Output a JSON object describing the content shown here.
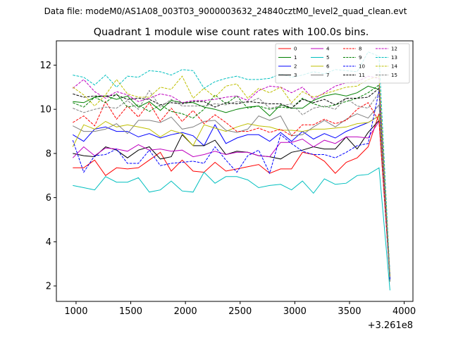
{
  "chart_data": {
    "type": "line",
    "suptitle": "Data file: modeM0/AS1A08_003T03_9000003632_24840cztM0_level2_quad_clean.evt",
    "title": "Quadrant 1 module wise count rates with 100.0s bins.",
    "xlabel": "",
    "ylabel": "",
    "x_offset_label": "+3.261e8",
    "xlim": [
      820,
      4080
    ],
    "ylim": [
      1.3,
      13.1
    ],
    "xticks": [
      1000,
      1500,
      2000,
      2500,
      3000,
      3500,
      4000
    ],
    "yticks": [
      2,
      4,
      6,
      8,
      10,
      12
    ],
    "grid": false,
    "legend": "top-right",
    "x": [
      970,
      1070,
      1170,
      1270,
      1370,
      1470,
      1570,
      1670,
      1770,
      1870,
      1970,
      2070,
      2170,
      2270,
      2370,
      2470,
      2570,
      2670,
      2770,
      2870,
      2970,
      3070,
      3170,
      3270,
      3370,
      3470,
      3570,
      3670,
      3770,
      3870
    ],
    "series": [
      {
        "name": "0",
        "color": "#ff0000",
        "dash": "solid",
        "values": [
          7.35,
          7.35,
          7.7,
          7.0,
          7.35,
          7.3,
          7.35,
          7.7,
          8.05,
          7.2,
          7.7,
          7.2,
          7.15,
          7.6,
          7.2,
          7.3,
          7.4,
          7.5,
          7.1,
          7.3,
          7.3,
          8.05,
          7.95,
          7.65,
          7.1,
          7.6,
          7.8,
          8.3,
          9.8,
          2.4
        ]
      },
      {
        "name": "1",
        "color": "#008000",
        "dash": "solid",
        "values": [
          10.35,
          10.3,
          10.55,
          10.6,
          10.45,
          10.6,
          10.1,
          10.35,
          9.95,
          10.4,
          10.3,
          10.3,
          10.1,
          10.0,
          9.85,
          10.0,
          10.1,
          10.15,
          9.7,
          10.2,
          10.05,
          10.05,
          10.4,
          10.6,
          10.7,
          10.6,
          10.75,
          11.05,
          10.9,
          2.2
        ]
      },
      {
        "name": "2",
        "color": "#0000ff",
        "dash": "solid",
        "values": [
          8.85,
          8.55,
          9.1,
          9.2,
          9.0,
          9.0,
          8.75,
          8.9,
          8.7,
          8.85,
          8.95,
          8.8,
          8.35,
          9.3,
          8.45,
          8.7,
          8.85,
          8.85,
          8.55,
          8.95,
          8.55,
          9.0,
          8.65,
          8.9,
          8.7,
          9.0,
          9.2,
          9.4,
          9.7,
          2.3
        ]
      },
      {
        "name": "3",
        "color": "#000000",
        "dash": "solid",
        "values": [
          8.0,
          7.9,
          7.85,
          8.3,
          8.15,
          7.8,
          8.15,
          8.3,
          7.75,
          7.85,
          8.85,
          8.35,
          8.35,
          8.6,
          7.95,
          8.1,
          8.05,
          7.9,
          7.85,
          7.75,
          8.05,
          8.15,
          8.3,
          8.2,
          8.2,
          8.75,
          8.2,
          8.95,
          9.5,
          2.35
        ]
      },
      {
        "name": "4",
        "color": "#bf00bf",
        "dash": "solid",
        "values": [
          7.8,
          8.3,
          7.9,
          8.25,
          8.2,
          8.1,
          8.4,
          8.15,
          8.2,
          8.1,
          8.15,
          7.85,
          7.95,
          8.1,
          7.95,
          8.05,
          8.05,
          7.9,
          7.85,
          8.5,
          8.5,
          8.65,
          8.3,
          8.6,
          8.45,
          8.75,
          8.75,
          8.7,
          9.45,
          2.3
        ]
      },
      {
        "name": "5",
        "color": "#00bfbf",
        "dash": "solid",
        "values": [
          6.55,
          6.45,
          6.35,
          6.95,
          6.7,
          6.7,
          6.9,
          6.25,
          6.35,
          6.75,
          6.3,
          6.25,
          7.15,
          6.65,
          6.95,
          6.95,
          6.8,
          6.45,
          6.55,
          6.6,
          6.35,
          6.75,
          6.2,
          6.85,
          6.6,
          6.65,
          7.0,
          7.05,
          7.35,
          1.8
        ]
      },
      {
        "name": "6",
        "color": "#bfbf00",
        "dash": "solid",
        "values": [
          8.3,
          9.3,
          9.1,
          9.45,
          9.2,
          9.3,
          9.2,
          9.1,
          8.75,
          9.05,
          8.9,
          8.35,
          9.3,
          9.15,
          9.0,
          9.2,
          9.35,
          9.25,
          9.2,
          9.05,
          9.05,
          9.0,
          9.1,
          9.1,
          9.15,
          9.2,
          9.35,
          9.4,
          9.7,
          2.3
        ]
      },
      {
        "name": "7",
        "color": "#808080",
        "dash": "solid",
        "values": [
          9.25,
          9.0,
          9.0,
          9.1,
          9.35,
          8.9,
          9.5,
          9.5,
          9.4,
          9.65,
          9.1,
          9.2,
          9.45,
          9.5,
          9.05,
          8.95,
          9.1,
          9.7,
          9.5,
          9.7,
          8.8,
          8.85,
          9.2,
          9.5,
          9.2,
          9.55,
          9.8,
          9.6,
          10.2,
          2.2
        ]
      },
      {
        "name": "8",
        "color": "#ff0000",
        "dash": "dashed",
        "values": [
          9.4,
          9.7,
          9.25,
          10.35,
          9.55,
          10.15,
          9.65,
          10.3,
          9.45,
          10.05,
          9.45,
          9.95,
          9.35,
          9.75,
          9.4,
          9.0,
          9.0,
          9.15,
          8.95,
          9.1,
          8.8,
          9.3,
          9.3,
          9.55,
          9.35,
          9.5,
          10.0,
          10.3,
          9.45,
          2.4
        ]
      },
      {
        "name": "9",
        "color": "#008000",
        "dash": "dashed",
        "values": [
          10.3,
          10.1,
          10.55,
          10.3,
          10.7,
          10.1,
          10.2,
          9.9,
          10.2,
          9.9,
          9.8,
          9.6,
          10.0,
          10.65,
          10.25,
          10.6,
          10.05,
          10.15,
          10.0,
          10.1,
          10.05,
          10.5,
          10.25,
          10.1,
          10.2,
          10.35,
          10.5,
          10.75,
          11.1,
          2.3
        ]
      },
      {
        "name": "10",
        "color": "#0000ff",
        "dash": "dashed",
        "values": [
          8.6,
          7.15,
          7.9,
          7.95,
          8.2,
          7.55,
          7.55,
          8.15,
          7.45,
          7.55,
          7.6,
          7.65,
          7.55,
          8.3,
          7.7,
          7.15,
          7.9,
          8.15,
          7.1,
          8.85,
          8.45,
          8.1,
          7.95,
          7.95,
          7.8,
          8.05,
          8.35,
          8.45,
          10.85,
          2.3
        ]
      },
      {
        "name": "11",
        "color": "#000000",
        "dash": "dashed",
        "values": [
          10.7,
          10.55,
          10.6,
          10.6,
          10.65,
          10.45,
          10.5,
          10.45,
          10.2,
          10.3,
          10.25,
          10.35,
          10.35,
          10.1,
          10.3,
          10.25,
          10.35,
          10.3,
          10.25,
          10.25,
          10.05,
          10.45,
          10.3,
          10.45,
          10.2,
          10.5,
          10.5,
          10.55,
          10.95,
          2.45
        ]
      },
      {
        "name": "12",
        "color": "#bf00bf",
        "dash": "dashed",
        "values": [
          10.95,
          11.35,
          10.8,
          10.5,
          10.8,
          10.65,
          10.35,
          10.5,
          10.7,
          10.6,
          10.3,
          10.4,
          10.4,
          10.45,
          10.55,
          10.6,
          10.4,
          10.85,
          11.05,
          11.0,
          10.75,
          11.0,
          10.45,
          10.75,
          11.05,
          11.2,
          11.25,
          11.5,
          11.4,
          2.5
        ]
      },
      {
        "name": "13",
        "color": "#00bfbf",
        "dash": "dashed",
        "values": [
          11.55,
          11.45,
          11.1,
          11.55,
          11.0,
          11.5,
          11.45,
          11.75,
          11.7,
          11.55,
          11.8,
          11.75,
          10.95,
          11.25,
          11.4,
          11.5,
          11.35,
          11.35,
          11.4,
          11.6,
          11.45,
          11.55,
          11.7,
          11.6,
          11.8,
          11.75,
          11.7,
          12.6,
          12.4,
          2.5
        ]
      },
      {
        "name": "14",
        "color": "#bfbf00",
        "dash": "dashed",
        "values": [
          11.0,
          10.65,
          10.15,
          10.65,
          11.35,
          10.7,
          10.55,
          10.55,
          11.0,
          10.9,
          11.5,
          10.5,
          10.95,
          10.55,
          11.05,
          11.15,
          10.5,
          10.95,
          10.75,
          11.0,
          10.3,
          10.8,
          10.55,
          10.7,
          10.85,
          11.0,
          11.05,
          11.35,
          11.5,
          2.4
        ]
      },
      {
        "name": "15",
        "color": "#808080",
        "dash": "dashed",
        "values": [
          10.05,
          9.85,
          10.0,
          10.1,
          10.05,
          10.4,
          10.0,
          10.85,
          10.1,
          10.45,
          10.15,
          10.15,
          10.15,
          10.25,
          10.2,
          10.35,
          10.3,
          10.5,
          10.05,
          10.15,
          10.25,
          9.75,
          10.05,
          10.15,
          10.0,
          10.5,
          10.15,
          10.05,
          10.75,
          2.4
        ]
      }
    ]
  }
}
